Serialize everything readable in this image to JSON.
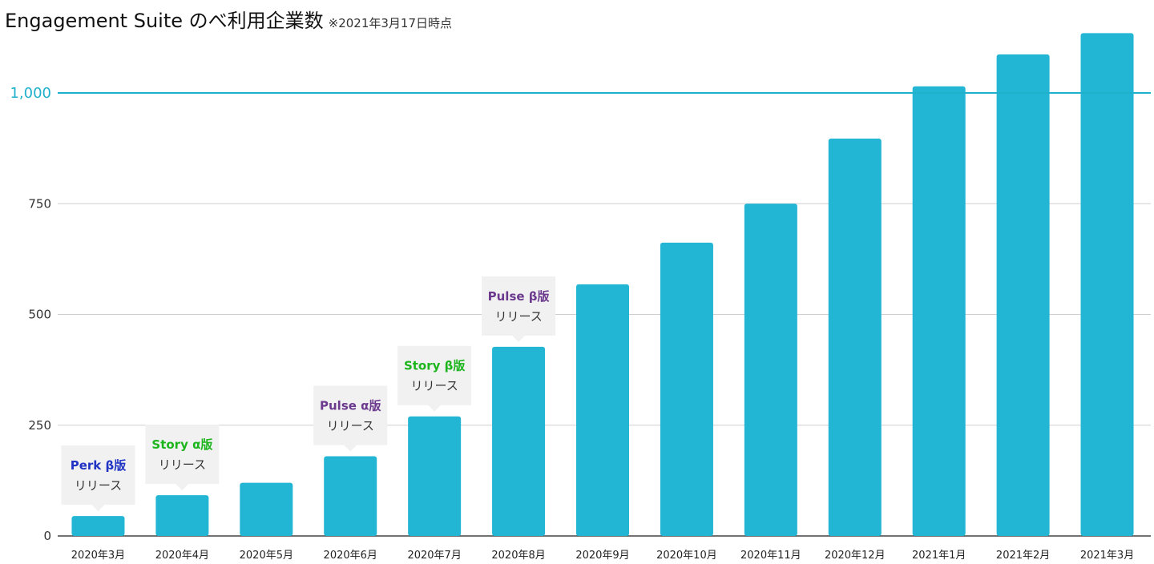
{
  "chart_data": {
    "type": "bar",
    "title": "Engagement Suite のべ利用企業数",
    "note": "※2021年3月17日時点",
    "categories": [
      "2020年3月",
      "2020年4月",
      "2020年5月",
      "2020年6月",
      "2020年7月",
      "2020年8月",
      "2020年9月",
      "2020年10月",
      "2020年11月",
      "2020年12月",
      "2021年1月",
      "2021年2月",
      "2021年3月"
    ],
    "values": [
      45,
      92,
      120,
      180,
      270,
      427,
      568,
      662,
      750,
      897,
      1015,
      1087,
      1135
    ],
    "ylim": [
      0,
      1135
    ],
    "yticks": [
      0,
      250,
      500,
      750
    ],
    "yticks_labels": [
      "0",
      "250",
      "500",
      "750"
    ],
    "highlight_line": {
      "value": 1000,
      "label": "1,000",
      "color": "#1fb0cc"
    },
    "bar_color": "#22b5d4",
    "grid": true,
    "annotations": [
      {
        "category_index": 0,
        "title": "Perk β版",
        "subtitle": "リリース",
        "title_color": "#2033c4"
      },
      {
        "category_index": 1,
        "title": "Story α版",
        "subtitle": "リリース",
        "title_color": "#1cb51c"
      },
      {
        "category_index": 3,
        "title": "Pulse α版",
        "subtitle": "リリース",
        "title_color": "#6b3a8e"
      },
      {
        "category_index": 4,
        "title": "Story β版",
        "subtitle": "リリース",
        "title_color": "#1cb51c"
      },
      {
        "category_index": 5,
        "title": "Pulse β版",
        "subtitle": "リリース",
        "title_color": "#6b3a8e"
      }
    ]
  }
}
